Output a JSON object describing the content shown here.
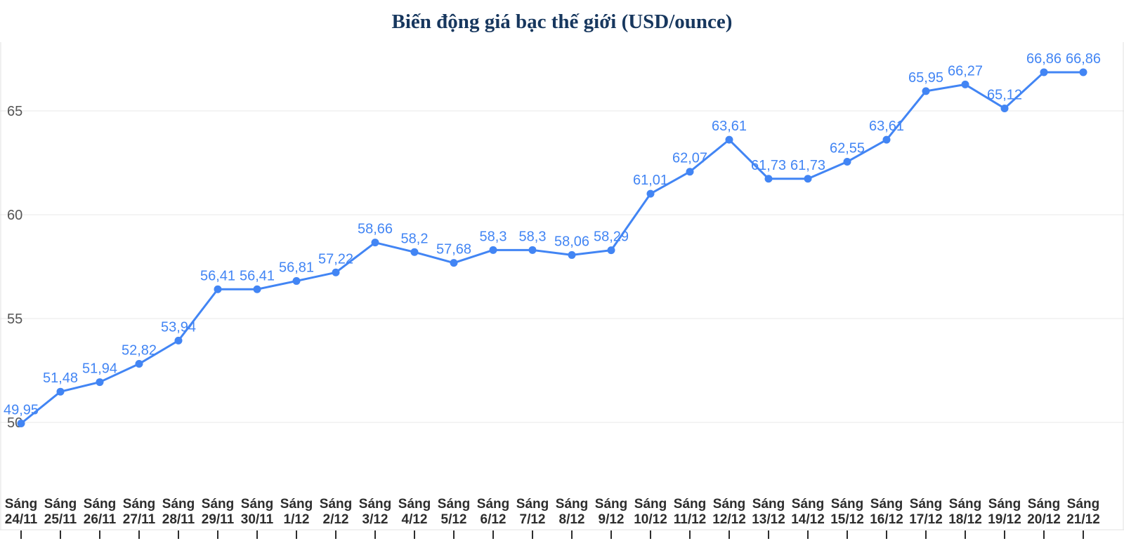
{
  "chart_data": {
    "type": "line",
    "title": "Biến động giá bạc thế giới (USD/ounce)",
    "x_label_top": "Sáng",
    "x_dates": [
      "24/11",
      "25/11",
      "26/11",
      "27/11",
      "28/11",
      "29/11",
      "30/11",
      "1/12",
      "2/12",
      "3/12",
      "4/12",
      "5/12",
      "6/12",
      "7/12",
      "8/12",
      "9/12",
      "10/12",
      "11/12",
      "12/12",
      "13/12",
      "14/12",
      "15/12",
      "16/12",
      "17/12",
      "18/12",
      "19/12",
      "20/12",
      "21/12"
    ],
    "series": [
      {
        "name": "Giá bạc thế giới (USD/ounce)",
        "values": [
          49.95,
          51.48,
          51.94,
          52.82,
          53.94,
          56.41,
          56.41,
          56.81,
          57.22,
          58.66,
          58.2,
          57.68,
          58.3,
          58.3,
          58.06,
          58.29,
          61.01,
          62.07,
          63.61,
          61.73,
          61.73,
          62.55,
          63.61,
          65.95,
          66.27,
          65.12,
          66.86,
          66.86
        ],
        "point_labels": [
          "49,95",
          "51,48",
          "51,94",
          "52,82",
          "53,94",
          "56,41",
          "56,41",
          "56,81",
          "57,22",
          "58,66",
          "58,2",
          "57,68",
          "58,3",
          "58,3",
          "58,06",
          "58,29",
          "61,01",
          "62,07",
          "63,61",
          "61,73",
          "61,73",
          "62,55",
          "63,61",
          "65,95",
          "66,27",
          "65,12",
          "66,86",
          "66,86"
        ]
      }
    ],
    "yticks": [
      50,
      55,
      60,
      65
    ],
    "ylim": [
      49.3,
      68.3
    ],
    "grid": true,
    "legend": "none",
    "colors": {
      "line": "#4285f4",
      "marker": "#4285f4",
      "point_label": "#4285f4",
      "title": "#17375e",
      "y_axis_label": "#555555",
      "x_axis_label": "#2d2d2d",
      "grid": "#e8e8e8",
      "border": "#e0e0e0",
      "tick": "#2d2d2d",
      "background": "#ffffff"
    }
  }
}
